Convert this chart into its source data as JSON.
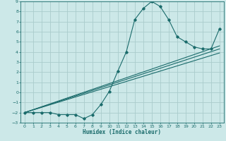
{
  "title": "",
  "xlabel": "Humidex (Indice chaleur)",
  "ylabel": "",
  "bg_color": "#cce8e8",
  "grid_color": "#aacccc",
  "line_color": "#1a6b6b",
  "xlim": [
    -0.5,
    23.5
  ],
  "ylim": [
    -3,
    9
  ],
  "xticks": [
    0,
    1,
    2,
    3,
    4,
    5,
    6,
    7,
    8,
    9,
    10,
    11,
    12,
    13,
    14,
    15,
    16,
    17,
    18,
    19,
    20,
    21,
    22,
    23
  ],
  "yticks": [
    -3,
    -2,
    -1,
    0,
    1,
    2,
    3,
    4,
    5,
    6,
    7,
    8,
    9
  ],
  "main_x": [
    0,
    1,
    2,
    3,
    4,
    5,
    6,
    7,
    8,
    9,
    10,
    11,
    12,
    13,
    14,
    15,
    16,
    17,
    18,
    19,
    20,
    21,
    22,
    23
  ],
  "main_y": [
    -2,
    -2,
    -2,
    -2,
    -2.2,
    -2.2,
    -2.2,
    -2.6,
    -2.2,
    -1.2,
    0.1,
    2.1,
    4.0,
    7.2,
    8.3,
    9.0,
    8.5,
    7.2,
    5.5,
    5.0,
    4.5,
    4.3,
    4.3,
    6.3
  ],
  "line2_x": [
    0,
    23
  ],
  "line2_y": [
    -2.0,
    4.3
  ],
  "line3_x": [
    0,
    23
  ],
  "line3_y": [
    -2.0,
    3.9
  ],
  "line4_x": [
    0,
    23
  ],
  "line4_y": [
    -2.0,
    4.6
  ]
}
